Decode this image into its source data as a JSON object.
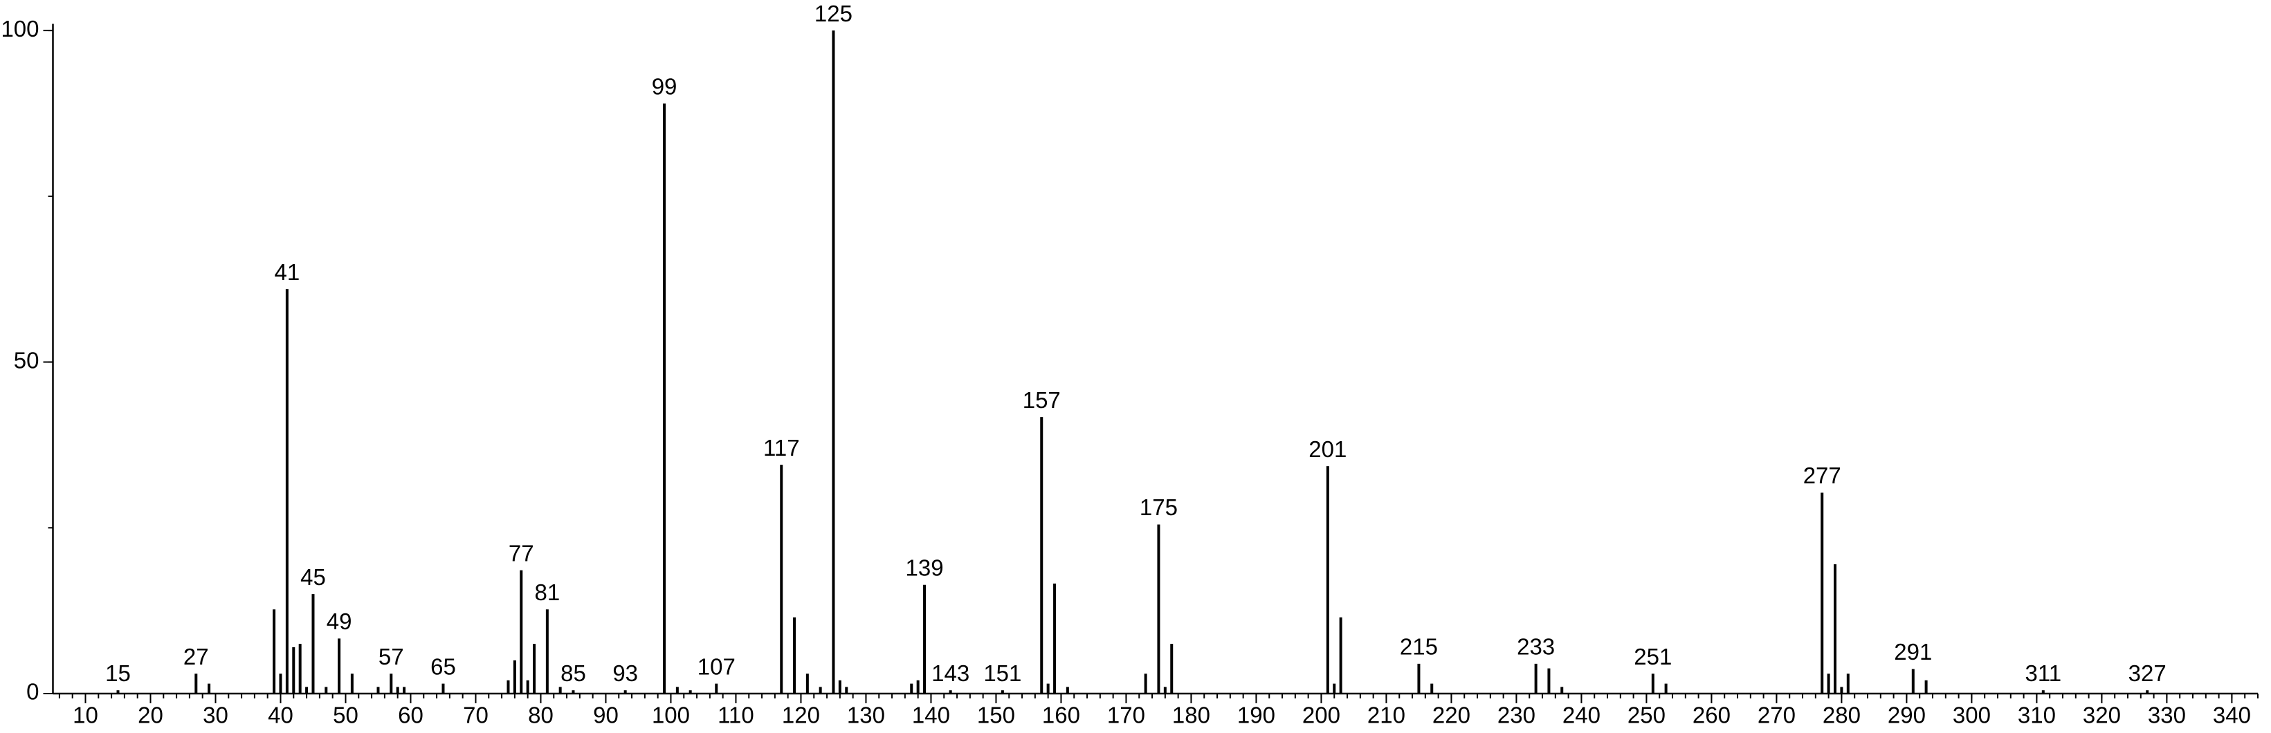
{
  "chart_data": {
    "type": "stem",
    "x": [
      15,
      27,
      29,
      39,
      40,
      41,
      42,
      43,
      44,
      45,
      47,
      49,
      51,
      55,
      57,
      58,
      59,
      65,
      75,
      76,
      77,
      78,
      79,
      81,
      83,
      85,
      93,
      99,
      101,
      103,
      107,
      117,
      119,
      121,
      123,
      125,
      126,
      127,
      137,
      138,
      139,
      143,
      151,
      157,
      158,
      159,
      161,
      173,
      175,
      176,
      177,
      201,
      202,
      203,
      215,
      217,
      233,
      235,
      237,
      251,
      253,
      277,
      278,
      279,
      280,
      281,
      291,
      293,
      311,
      327
    ],
    "values": [
      0.5,
      3,
      1.5,
      12.7,
      3,
      61,
      7,
      7.5,
      1,
      15,
      1,
      8.3,
      3,
      1,
      3,
      1,
      1,
      1.5,
      2,
      5,
      18.6,
      2,
      7.5,
      12.7,
      1,
      0.5,
      0.5,
      89,
      1,
      0.5,
      1.5,
      34.5,
      11.5,
      3,
      1,
      100,
      2,
      1,
      1.5,
      2,
      16.4,
      0.5,
      0.5,
      41.7,
      1.5,
      16.6,
      1,
      3,
      25.5,
      1,
      7.5,
      34.3,
      1.5,
      11.5,
      4.5,
      1.5,
      4.5,
      3.8,
      1,
      3,
      1.5,
      30.3,
      3,
      19.5,
      1,
      3,
      3.7,
      2,
      0.5,
      0.5
    ],
    "labeled": [
      true,
      true,
      false,
      false,
      false,
      true,
      false,
      false,
      false,
      true,
      false,
      true,
      false,
      false,
      true,
      false,
      false,
      true,
      false,
      false,
      true,
      false,
      false,
      true,
      false,
      true,
      true,
      true,
      false,
      false,
      true,
      true,
      false,
      false,
      false,
      true,
      false,
      false,
      false,
      false,
      true,
      true,
      true,
      true,
      false,
      false,
      false,
      false,
      true,
      false,
      false,
      true,
      false,
      false,
      true,
      false,
      true,
      false,
      false,
      true,
      false,
      true,
      false,
      false,
      false,
      false,
      true,
      false,
      true,
      true
    ],
    "color": "#000000",
    "xlim": [
      5,
      344
    ],
    "ylim": [
      0,
      101
    ],
    "xticks": [
      10,
      20,
      30,
      40,
      50,
      60,
      70,
      80,
      90,
      100,
      110,
      120,
      130,
      140,
      150,
      160,
      170,
      180,
      190,
      200,
      210,
      220,
      230,
      240,
      250,
      260,
      270,
      280,
      290,
      300,
      310,
      320,
      330,
      340
    ],
    "yticks": [
      0,
      50,
      100
    ],
    "minor_step": {
      "x": 2,
      "y": 25
    }
  }
}
